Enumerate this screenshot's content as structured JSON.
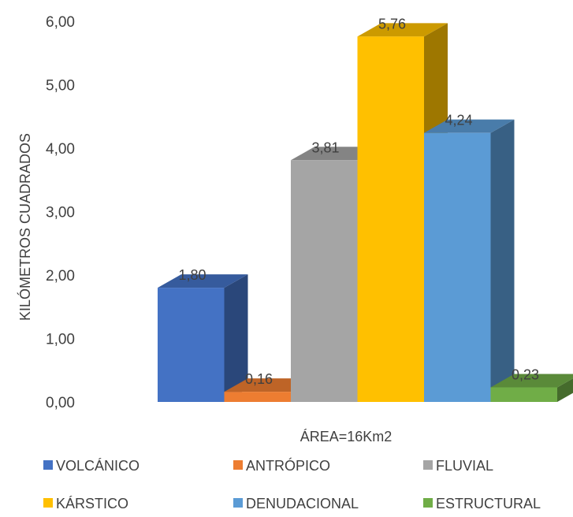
{
  "chart_data": {
    "type": "bar",
    "title": "",
    "xlabel": "ÁREA=16Km2",
    "ylabel": "KILÓMETROS CUADRADOS",
    "ylim": [
      0,
      6
    ],
    "yticks": [
      "0,00",
      "1,00",
      "2,00",
      "3,00",
      "4,00",
      "5,00",
      "6,00"
    ],
    "categories": [
      "VOLCÁNICO",
      "ANTRÓPICO",
      "FLUVIAL",
      "KÁRSTICO",
      "DENUDACIONAL",
      "ESTRUCTURAL"
    ],
    "values": [
      1.8,
      0.16,
      3.81,
      5.76,
      4.24,
      0.23
    ],
    "data_labels": [
      "1,80",
      "0,16",
      "3,81",
      "5,76",
      "4,24",
      "0,23"
    ],
    "colors": [
      "#4472C4",
      "#ED7D31",
      "#A5A5A5",
      "#FFC000",
      "#5B9BD5",
      "#70AD47"
    ],
    "legend_position": "bottom",
    "grid": false,
    "style": "3d-column"
  }
}
